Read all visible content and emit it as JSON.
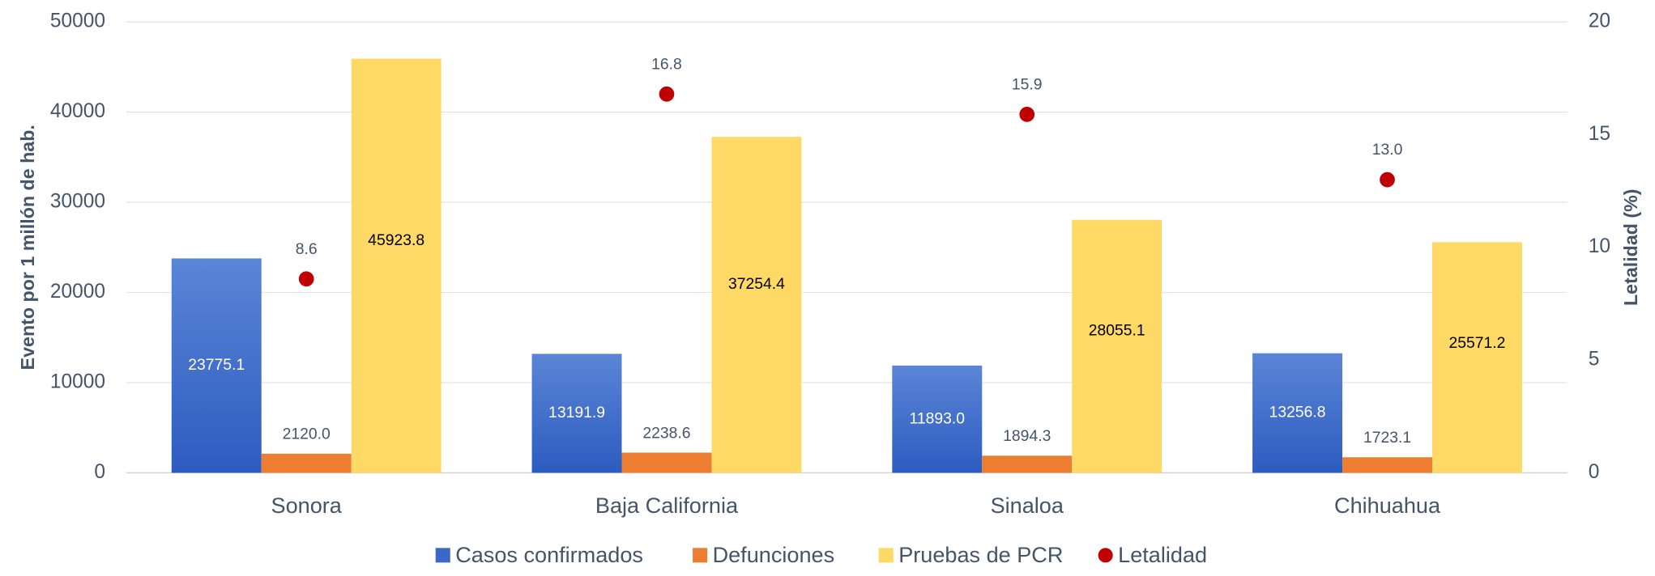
{
  "chart_data": {
    "type": "bar",
    "categories": [
      "Sonora",
      "Baja California",
      "Sinaloa",
      "Chihuahua"
    ],
    "series": [
      {
        "name": "Casos confirmados",
        "color": "#3a68c6",
        "values": [
          23775.1,
          13191.9,
          11893.0,
          13256.8
        ],
        "value_labels": [
          "23775.1",
          "13191.9",
          "11893.0",
          "13256.8"
        ]
      },
      {
        "name": "Defunciones",
        "color": "#ed7d31",
        "values": [
          2120.0,
          2238.6,
          1894.3,
          1723.1
        ],
        "value_labels": [
          "2120.0",
          "2238.6",
          "1894.3",
          "1723.1"
        ]
      },
      {
        "name": "Pruebas de PCR",
        "color": "#ffd966",
        "values": [
          45923.8,
          37254.4,
          28055.1,
          25571.2
        ],
        "value_labels": [
          "45923.8",
          "37254.4",
          "28055.1",
          "25571.2"
        ]
      },
      {
        "name": "Letalidad",
        "color": "#c00000",
        "axis": "y2",
        "type": "scatter",
        "values": [
          8.6,
          16.8,
          15.9,
          13.0
        ],
        "value_labels": [
          "8.6",
          "16.8",
          "15.9",
          "13.0"
        ]
      }
    ],
    "y_label": "Evento por 1 millón de hab.",
    "y2_label": "Letalidad (%)",
    "ylim": [
      0,
      50000
    ],
    "yticks": [
      0,
      10000,
      20000,
      30000,
      40000,
      50000
    ],
    "y2lim": [
      0,
      20
    ],
    "y2ticks": [
      0,
      5,
      10,
      15,
      20
    ],
    "grid": true,
    "legend": "bottom"
  }
}
